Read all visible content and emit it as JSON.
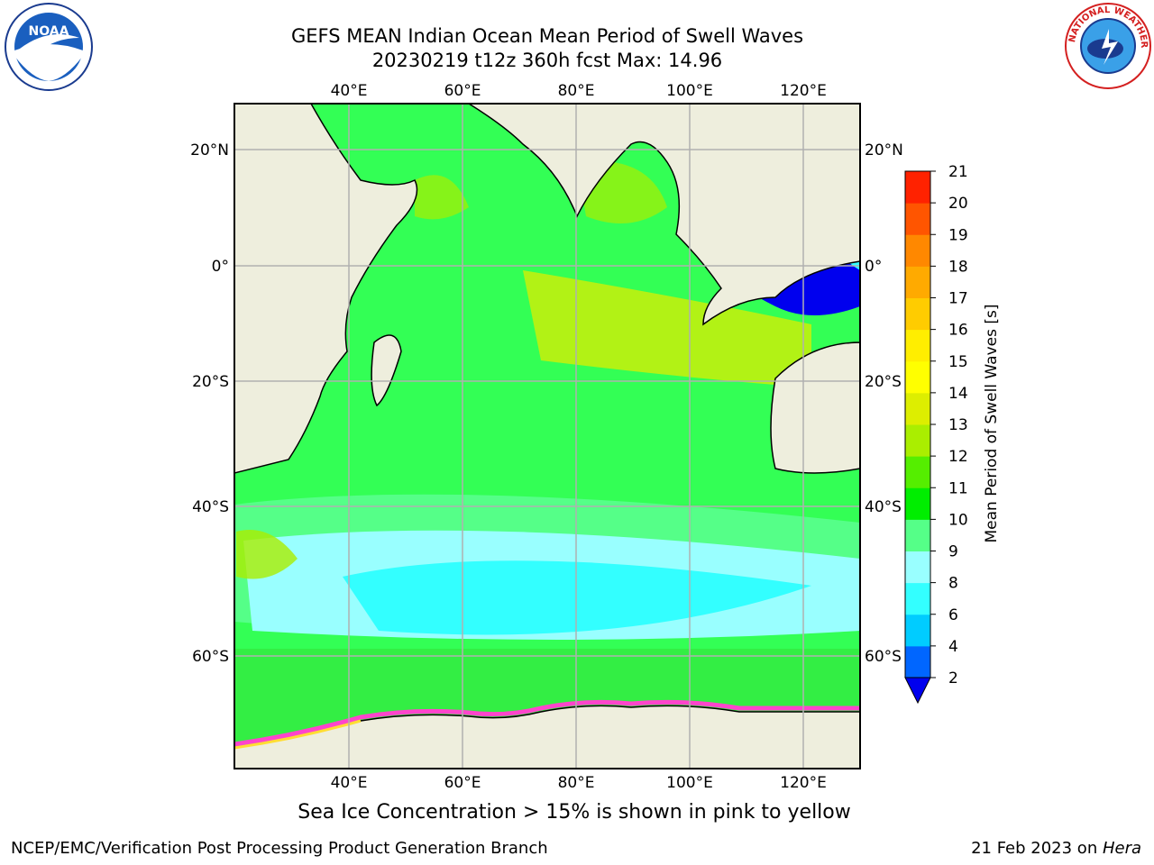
{
  "title_line1": "GEFS MEAN Indian Ocean Mean Period of Swell Waves",
  "title_line2": "20230219 t12z 360h fcst   Max: 14.96",
  "footer_left": "NCEP/EMC/Verification Post Processing Product Generation Branch",
  "footer_right_date": "21 Feb 2023 on ",
  "footer_right_host": "Hera",
  "sea_ice_note": "Sea Ice Concentration > 15% is shown in pink to yellow",
  "logos": {
    "left": "NOAA",
    "right": "NATIONAL WEATHER SERVICE"
  },
  "map": {
    "lon_labels": [
      "40°E",
      "60°E",
      "80°E",
      "100°E",
      "120°E"
    ],
    "lat_labels": [
      "20°N",
      "0°",
      "20°S",
      "40°S",
      "60°S"
    ],
    "land_color": "#eeeedd",
    "grid_color": "#b0b0b0"
  },
  "colorbar": {
    "label": "Mean Period of Swell Waves [s]",
    "ticks": [
      "2",
      "4",
      "6",
      "8",
      "9",
      "10",
      "11",
      "12",
      "13",
      "14",
      "15",
      "16",
      "17",
      "18",
      "19",
      "20",
      "21"
    ],
    "colors": [
      "#0066ff",
      "#00ccff",
      "#33ffff",
      "#99ffff",
      "#55ff88",
      "#00ee00",
      "#55ee00",
      "#aaee00",
      "#ddee00",
      "#ffff00",
      "#ffee00",
      "#ffcc00",
      "#ffaa00",
      "#ff8800",
      "#ff5500",
      "#ff2200"
    ],
    "under_color": "#0000ee"
  }
}
